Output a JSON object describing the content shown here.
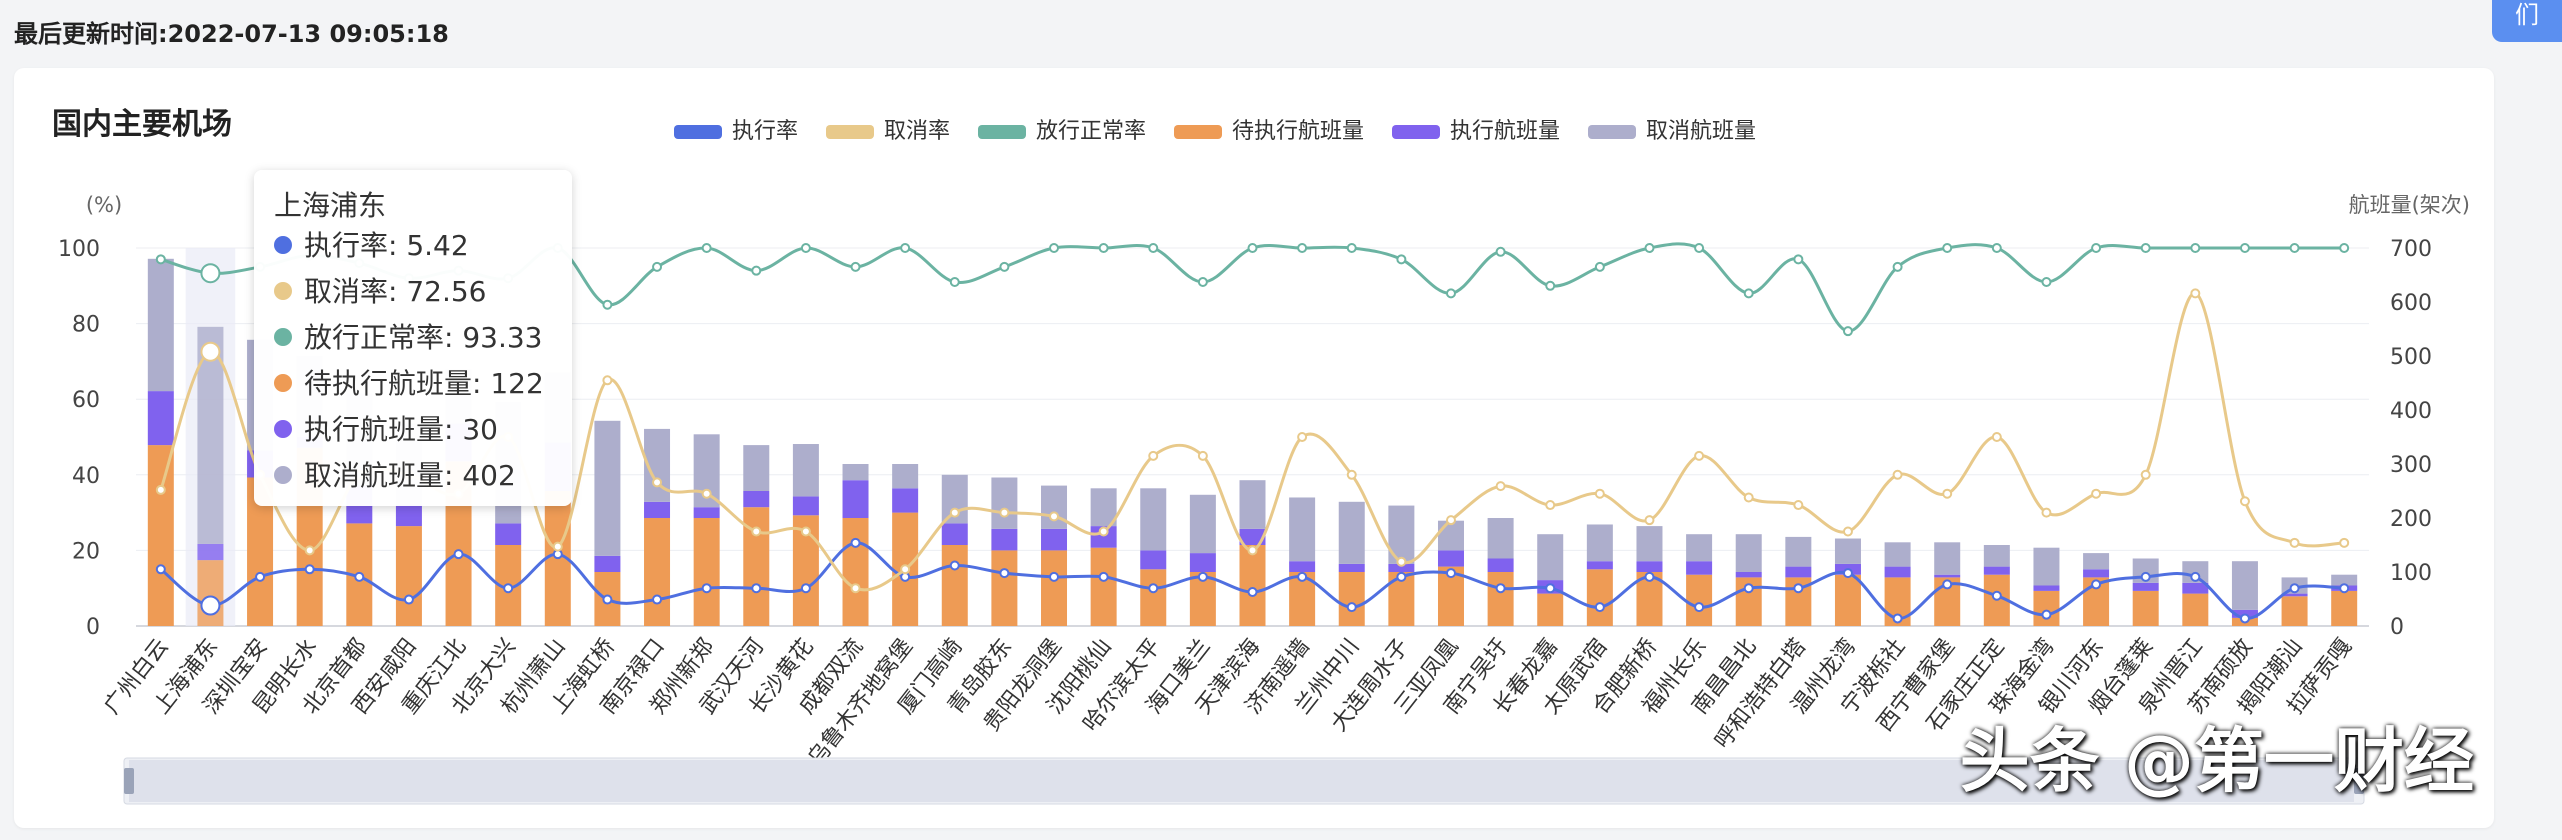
{
  "header": {
    "updated_label": "最后更新时间:",
    "updated_time": "2022-07-13 09:05:18",
    "top_button_label": "们"
  },
  "watermark": "头条 @第一财经",
  "chart_data": {
    "type": "bar",
    "title": "国内主要机场",
    "ylabel_left": "(%)",
    "ylabel_right": "航班量(架次)",
    "ylim_left": [
      0,
      100
    ],
    "ylim_right": [
      0,
      700
    ],
    "left_ticks": [
      0,
      20,
      40,
      60,
      80,
      100
    ],
    "right_ticks": [
      0,
      100,
      200,
      300,
      400,
      500,
      600,
      700
    ],
    "legend_position": "top",
    "colors": {
      "执行率": "#4f6fe0",
      "取消率": "#e8c98a",
      "放行正常率": "#6bb3a2",
      "待执行航班量": "#ee9b55",
      "执行航班量": "#8062ee",
      "取消航班量": "#adaecc"
    },
    "categories": [
      "广州白云",
      "上海浦东",
      "深圳宝安",
      "昆明长水",
      "北京首都",
      "西安咸阳",
      "重庆江北",
      "北京大兴",
      "杭州萧山",
      "上海虹桥",
      "南京禄口",
      "郑州新郑",
      "武汉天河",
      "长沙黄花",
      "成都双流",
      "乌鲁木齐地窝堡",
      "厦门高崎",
      "青岛胶东",
      "贵阳龙洞堡",
      "沈阳桃仙",
      "哈尔滨太平",
      "海口美兰",
      "天津滨海",
      "济南遥墙",
      "兰州中川",
      "大连周水子",
      "三亚凤凰",
      "南宁吴圩",
      "长春龙嘉",
      "太原武宿",
      "合肥新桥",
      "福州长乐",
      "南昌昌北",
      "呼和浩特白塔",
      "温州龙湾",
      "宁波栎社",
      "西宁曹家堡",
      "石家庄正定",
      "珠海金湾",
      "银川河东",
      "烟台蓬莱",
      "泉州晋江",
      "苏南硕放",
      "揭阳潮汕",
      "拉萨贡嘎"
    ],
    "series": [
      {
        "name": "待执行航班量",
        "type": "bar",
        "values": [
          335,
          122,
          275,
          330,
          190,
          185,
          305,
          150,
          250,
          100,
          200,
          200,
          220,
          205,
          200,
          210,
          150,
          140,
          140,
          145,
          105,
          100,
          150,
          100,
          100,
          100,
          110,
          100,
          60,
          105,
          100,
          95,
          90,
          90,
          95,
          90,
          90,
          95,
          65,
          90,
          65,
          60,
          15,
          55,
          65
        ]
      },
      {
        "name": "执行航班量",
        "type": "bar",
        "values": [
          100,
          30,
          50,
          20,
          70,
          40,
          70,
          40,
          90,
          30,
          30,
          20,
          30,
          35,
          70,
          45,
          40,
          40,
          40,
          40,
          35,
          35,
          30,
          20,
          15,
          15,
          30,
          25,
          25,
          15,
          20,
          25,
          10,
          20,
          20,
          20,
          5,
          15,
          10,
          15,
          15,
          20,
          15,
          5,
          10
        ]
      },
      {
        "name": "取消航班量",
        "type": "bar",
        "values": [
          245,
          402,
          205,
          150,
          170,
          150,
          100,
          225,
          130,
          250,
          135,
          135,
          85,
          97,
          30,
          45,
          90,
          95,
          80,
          70,
          115,
          108,
          90,
          118,
          115,
          108,
          55,
          75,
          85,
          68,
          65,
          50,
          70,
          55,
          47,
          45,
          60,
          40,
          70,
          30,
          45,
          40,
          90,
          30,
          20
        ]
      },
      {
        "name": "执行率",
        "type": "line",
        "values": [
          15,
          5.42,
          13,
          15,
          13,
          7,
          19,
          10,
          19,
          7,
          7,
          10,
          10,
          10,
          22,
          13,
          16,
          14,
          13,
          13,
          10,
          13,
          9,
          13,
          5,
          13,
          14,
          10,
          10,
          5,
          13,
          5,
          10,
          10,
          14,
          2,
          11,
          8,
          3,
          11,
          13,
          13,
          2,
          10,
          10
        ]
      },
      {
        "name": "取消率",
        "type": "line",
        "values": [
          36,
          72.56,
          40,
          20,
          40,
          40,
          35,
          50,
          21,
          65,
          38,
          35,
          25,
          25,
          10,
          15,
          30,
          30,
          29,
          25,
          45,
          45,
          20,
          50,
          40,
          17,
          28,
          37,
          32,
          35,
          28,
          45,
          34,
          32,
          25,
          40,
          35,
          50,
          30,
          35,
          40,
          88,
          33,
          22,
          22
        ]
      },
      {
        "name": "放行正常率",
        "type": "line",
        "values": [
          97,
          93.33,
          95,
          98,
          96,
          92,
          94,
          92,
          100,
          85,
          95,
          100,
          94,
          100,
          95,
          100,
          91,
          95,
          100,
          100,
          100,
          91,
          100,
          100,
          100,
          97,
          88,
          99,
          90,
          95,
          100,
          100,
          88,
          97,
          78,
          95,
          100,
          100,
          91,
          100,
          100,
          100,
          100,
          100,
          100
        ]
      }
    ]
  },
  "tooltip": {
    "title": "上海浦东",
    "rows": [
      {
        "label": "执行率: 5.42",
        "color": "#4f6fe0"
      },
      {
        "label": "取消率: 72.56",
        "color": "#e8c98a"
      },
      {
        "label": "放行正常率: 93.33",
        "color": "#6bb3a2"
      },
      {
        "label": "待执行航班量: 122",
        "color": "#ee9b55"
      },
      {
        "label": "执行航班量: 30",
        "color": "#8062ee"
      },
      {
        "label": "取消航班量: 402",
        "color": "#adaecc"
      }
    ]
  }
}
